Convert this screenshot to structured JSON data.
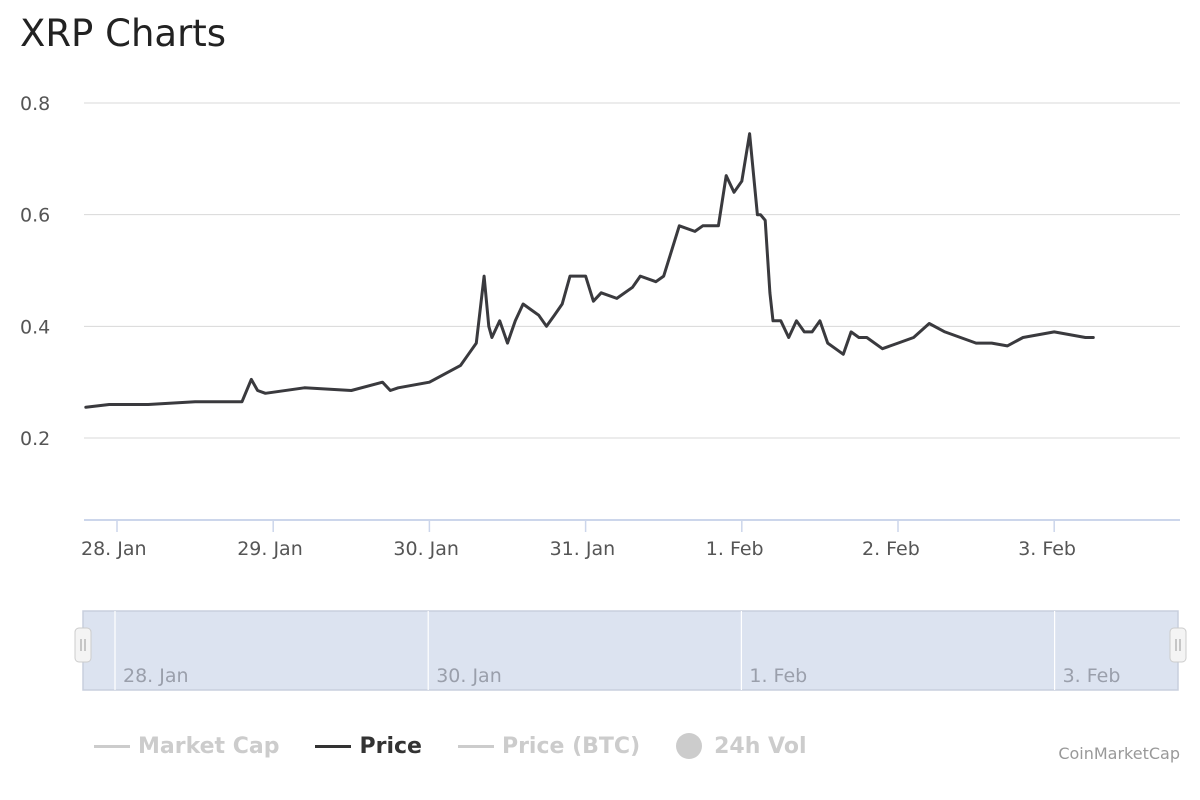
{
  "title": "XRP Charts",
  "credit": "CoinMarketCap",
  "colors": {
    "price_line": "#3a3a3e",
    "grid": "#d8d8d8",
    "axis": "#ccd6eb",
    "navigator_fill": "#dce3f0",
    "navigator_border": "#c8cfdd",
    "legend_inactive": "#cccccc",
    "legend_active": "#333333"
  },
  "legend": [
    {
      "label": "Market Cap",
      "symbol": "line",
      "active": false
    },
    {
      "label": "Price",
      "symbol": "line",
      "active": true
    },
    {
      "label": "Price (BTC)",
      "symbol": "line",
      "active": false
    },
    {
      "label": "24h Vol",
      "symbol": "dot",
      "active": false
    }
  ],
  "chart_data": {
    "type": "line",
    "title": "XRP Charts",
    "xlabel": "",
    "ylabel": "",
    "y_ticks": [
      0.2,
      0.4,
      0.6,
      0.8
    ],
    "ylim": [
      0.05,
      0.82
    ],
    "x_ticks": [
      "28. Jan",
      "29. Jan",
      "30. Jan",
      "31. Jan",
      "1. Feb",
      "2. Feb",
      "3. Feb"
    ],
    "x_range_days": [
      27.8,
      34.8
    ],
    "grid": true,
    "legend_position": "bottom",
    "series": [
      {
        "name": "Price",
        "x_unit": "day of January 2018 (fractional)",
        "x": [
          27.8,
          27.95,
          28.2,
          28.5,
          28.8,
          28.86,
          28.9,
          28.95,
          29.2,
          29.5,
          29.7,
          29.75,
          29.8,
          30.0,
          30.2,
          30.25,
          30.3,
          30.35,
          30.38,
          30.4,
          30.45,
          30.5,
          30.55,
          30.6,
          30.65,
          30.7,
          30.75,
          30.8,
          30.85,
          30.9,
          31.0,
          31.05,
          31.1,
          31.2,
          31.3,
          31.35,
          31.45,
          31.5,
          31.6,
          31.7,
          31.75,
          31.85,
          31.9,
          31.95,
          32.0,
          32.05,
          32.1,
          32.12,
          32.15,
          32.18,
          32.2,
          32.25,
          32.3,
          32.35,
          32.4,
          32.45,
          32.5,
          32.55,
          32.6,
          32.65,
          32.7,
          32.75,
          32.8,
          32.9,
          33.0,
          33.1,
          33.2,
          33.3,
          33.4,
          33.5,
          33.6,
          33.7,
          33.8,
          34.0,
          34.2,
          34.25
        ],
        "values": [
          0.255,
          0.26,
          0.26,
          0.265,
          0.265,
          0.305,
          0.285,
          0.28,
          0.29,
          0.285,
          0.3,
          0.285,
          0.29,
          0.3,
          0.33,
          0.35,
          0.37,
          0.49,
          0.4,
          0.38,
          0.41,
          0.37,
          0.41,
          0.44,
          0.43,
          0.42,
          0.4,
          0.42,
          0.44,
          0.49,
          0.49,
          0.445,
          0.46,
          0.45,
          0.47,
          0.49,
          0.48,
          0.49,
          0.58,
          0.57,
          0.58,
          0.58,
          0.67,
          0.64,
          0.66,
          0.745,
          0.6,
          0.6,
          0.59,
          0.46,
          0.41,
          0.41,
          0.38,
          0.41,
          0.39,
          0.39,
          0.41,
          0.37,
          0.36,
          0.35,
          0.39,
          0.38,
          0.38,
          0.36,
          0.37,
          0.38,
          0.405,
          0.39,
          0.38,
          0.37,
          0.37,
          0.365,
          0.38,
          0.39,
          0.38,
          0.38
        ]
      }
    ],
    "navigator": {
      "x_ticks": [
        "28. Jan",
        "30. Jan",
        "1. Feb",
        "3. Feb"
      ]
    }
  }
}
